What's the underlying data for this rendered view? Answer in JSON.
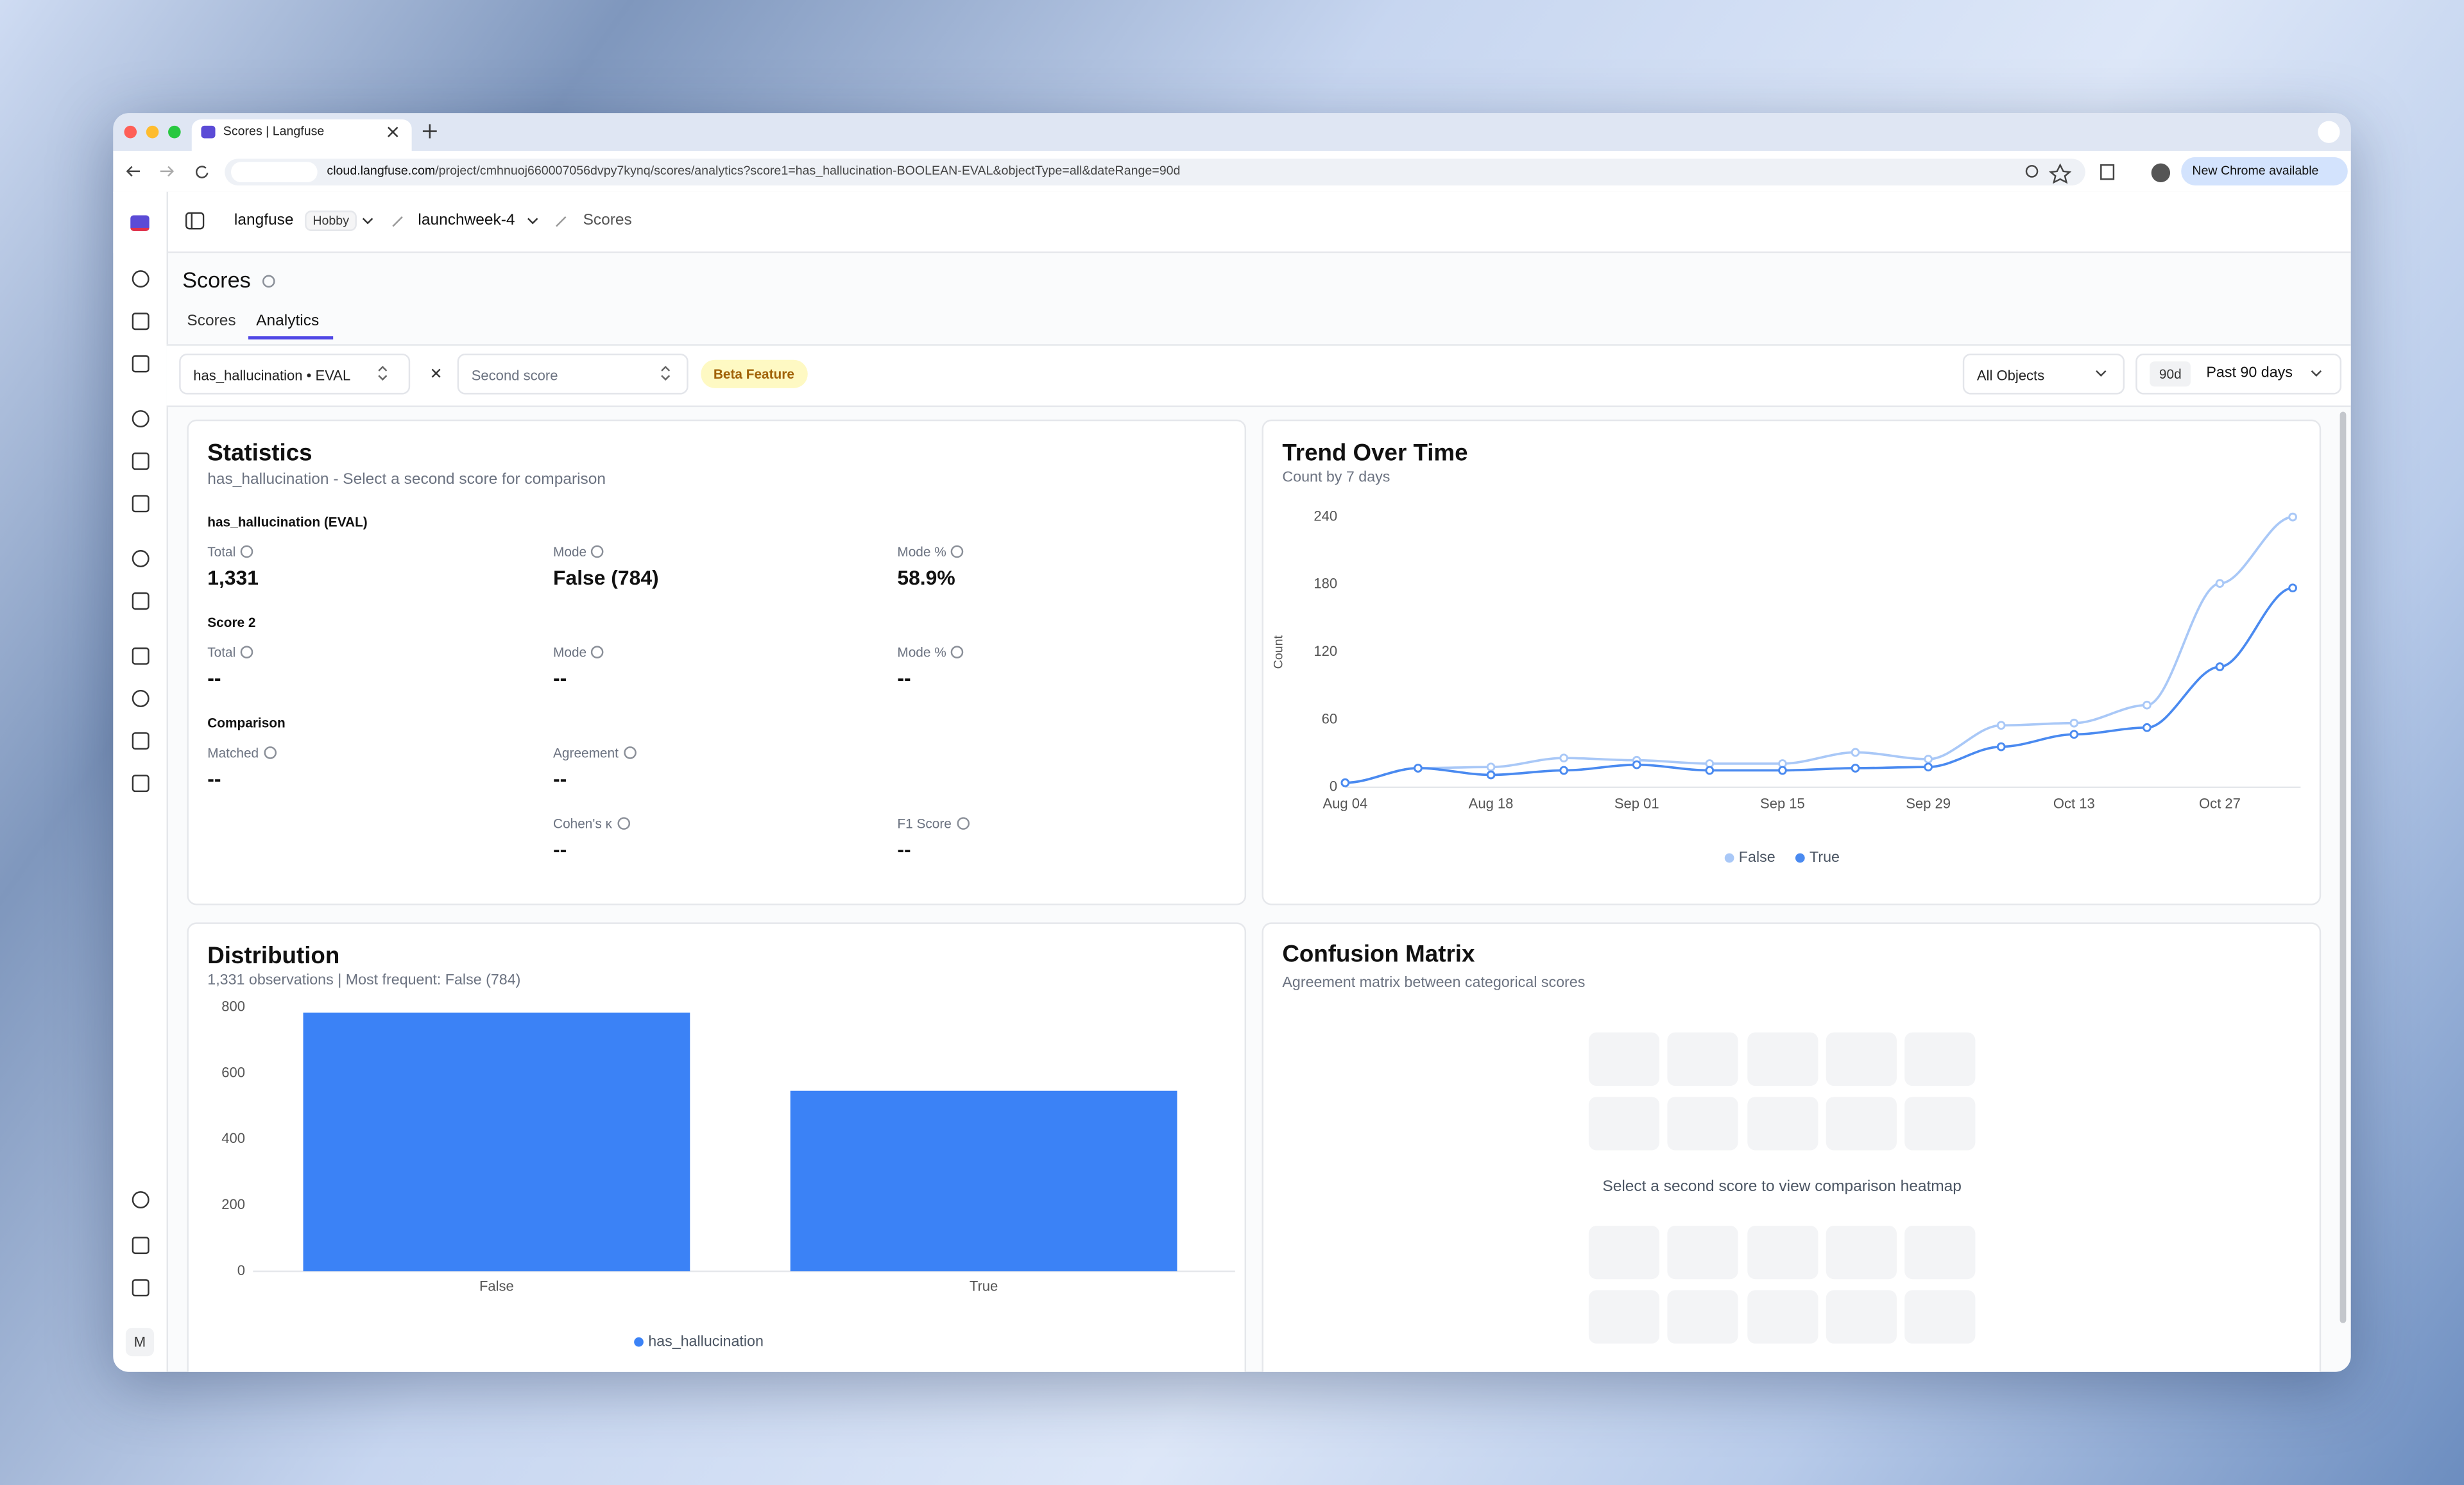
{
  "browser": {
    "tab_title": "Scores | Langfuse",
    "url_host": "cloud.langfuse.com",
    "url_path": "/project/cmhnuoj660007056dvpy7kynq/scores/analytics?score1=has_hallucination-BOOLEAN-EVAL&objectType=all&dateRange=90d",
    "update_button": "New Chrome available"
  },
  "header": {
    "org": "langfuse",
    "plan": "Hobby",
    "project": "launchweek-4",
    "page": "Scores"
  },
  "sidebar": {
    "avatar": "M"
  },
  "page": {
    "title": "Scores",
    "tabs": [
      "Scores",
      "Analytics"
    ]
  },
  "filters": {
    "score1": "has_hallucination • EVAL",
    "score2_placeholder": "Second score",
    "badge": "Beta Feature",
    "object_type": "All Objects",
    "range_short": "90d",
    "range": "Past 90 days"
  },
  "statistics": {
    "title": "Statistics",
    "subtitle": "has_hallucination - Select a second score for comparison",
    "sections": [
      {
        "heading": "has_hallucination (EVAL)",
        "items": [
          {
            "label": "Total",
            "value": "1,331"
          },
          {
            "label": "Mode",
            "value": "False (784)"
          },
          {
            "label": "Mode %",
            "value": "58.9%"
          }
        ]
      },
      {
        "heading": "Score 2",
        "items": [
          {
            "label": "Total",
            "value": "--"
          },
          {
            "label": "Mode",
            "value": "--"
          },
          {
            "label": "Mode %",
            "value": "--"
          }
        ]
      },
      {
        "heading": "Comparison",
        "items": [
          {
            "label": "Matched",
            "value": "--"
          },
          {
            "label": "Agreement",
            "value": "--"
          },
          {
            "label": "Cohen's κ",
            "value": "--"
          },
          {
            "label": "F1 Score",
            "value": "--"
          }
        ]
      }
    ]
  },
  "chart_data": [
    {
      "type": "line",
      "title": "Trend Over Time",
      "subtitle": "Count by 7 days",
      "y_label": "Count",
      "categories": [
        "Aug 04",
        null,
        "Aug 18",
        null,
        "Sep 01",
        null,
        "Sep 15",
        null,
        "Sep 29",
        null,
        "Oct 13",
        null,
        "Oct 27",
        null
      ],
      "series": [
        {
          "name": "False",
          "color": "#a9c8f7",
          "values": [
            4,
            17,
            18,
            26,
            24,
            21,
            21,
            31,
            25,
            55,
            57,
            73,
            181,
            240
          ]
        },
        {
          "name": "True",
          "color": "#4a8af0",
          "values": [
            4,
            17,
            11,
            15,
            20,
            15,
            15,
            17,
            18,
            36,
            47,
            53,
            107,
            177
          ]
        }
      ],
      "ylim": [
        0,
        240
      ],
      "yticks": [
        0,
        60,
        120,
        180,
        240
      ]
    },
    {
      "type": "bar",
      "title": "Distribution",
      "subtitle": "1,331 observations | Most frequent: False (784)",
      "categories": [
        "False",
        "True"
      ],
      "series": [
        {
          "name": "has_hallucination",
          "color": "#3b82f6",
          "values": [
            784,
            547
          ]
        }
      ],
      "ylim": [
        0,
        800
      ],
      "yticks": [
        0,
        200,
        400,
        600,
        800
      ]
    }
  ],
  "confusion_matrix": {
    "title": "Confusion Matrix",
    "subtitle": "Agreement matrix between categorical scores",
    "message": "Select a second score to view comparison heatmap"
  }
}
